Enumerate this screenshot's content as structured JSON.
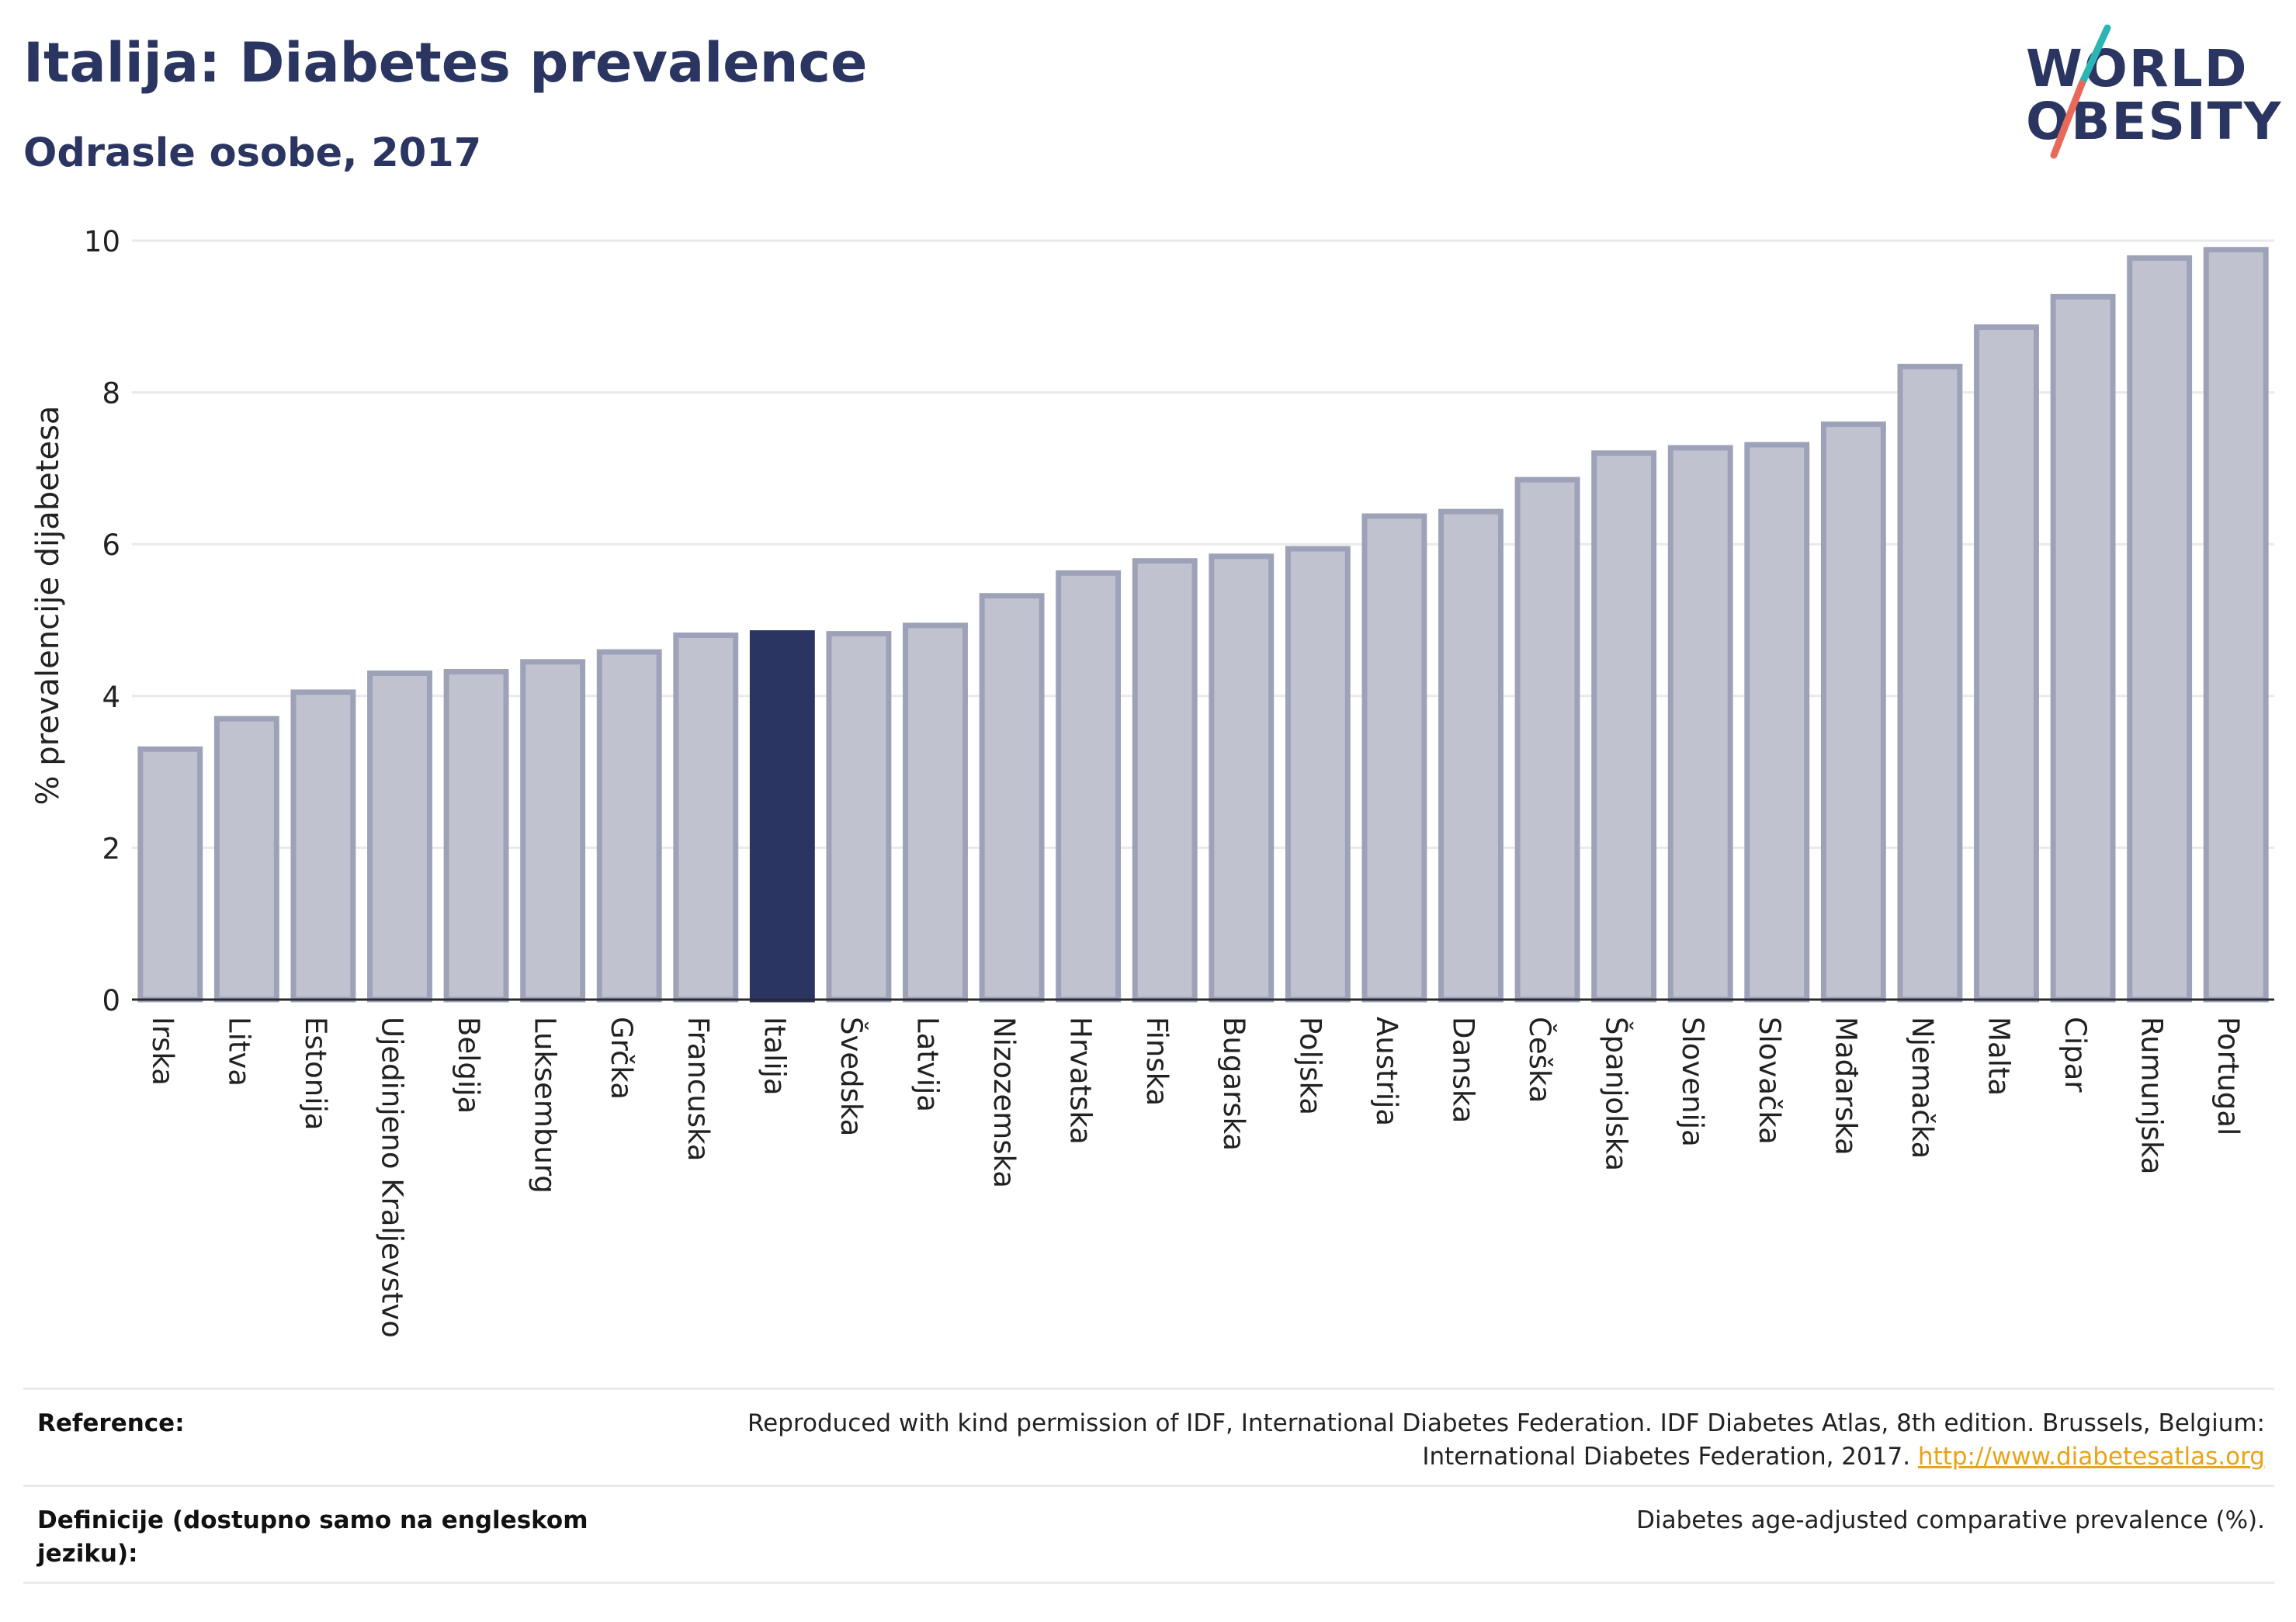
{
  "header": {
    "title": "Italija: Diabetes prevalence",
    "subtitle": "Odrasle osobe, 2017"
  },
  "logo": {
    "line1": "WORLD",
    "line2": "OBESITY",
    "slash_colors": [
      "#2cb5b5",
      "#e8695a"
    ]
  },
  "colors": {
    "bar": "#c0c3cf",
    "bar_stroke": "#9da2b8",
    "highlight": "#2b3561",
    "grid": "#e9e9e9",
    "axis": "#2b2b2b"
  },
  "chart_data": {
    "type": "bar",
    "title": "Italija: Diabetes prevalence",
    "subtitle": "Odrasle osobe, 2017",
    "xlabel": "",
    "ylabel": "% prevalencije dijabetesa",
    "ylim": [
      0,
      10
    ],
    "yticks": [
      0,
      2,
      4,
      6,
      8,
      10
    ],
    "grid": true,
    "highlight": "Italija",
    "categories": [
      "Irska",
      "Litva",
      "Estonija",
      "Ujedinjeno Kraljevstvo",
      "Belgija",
      "Luksemburg",
      "Grčka",
      "Francuska",
      "Italija",
      "Švedska",
      "Latvija",
      "Nizozemska",
      "Hrvatska",
      "Finska",
      "Bugarska",
      "Poljska",
      "Austrija",
      "Danska",
      "Češka",
      "Španjolska",
      "Slovenija",
      "Slovačka",
      "Mađarska",
      "Njemačka",
      "Malta",
      "Cipar",
      "Rumunjska",
      "Portugal"
    ],
    "values": [
      3.3,
      3.7,
      4.05,
      4.3,
      4.32,
      4.45,
      4.58,
      4.8,
      4.83,
      4.82,
      4.93,
      5.32,
      5.62,
      5.78,
      5.84,
      5.94,
      6.37,
      6.43,
      6.85,
      7.2,
      7.27,
      7.31,
      7.58,
      8.34,
      8.86,
      9.26,
      9.77,
      9.88
    ]
  },
  "footer": {
    "reference_label": "Reference:",
    "reference_text_line1": "Reproduced with kind permission of IDF, International Diabetes Federation. IDF Diabetes Atlas, 8th edition. Brussels, Belgium:",
    "reference_text_line2": "International Diabetes Federation, 2017.",
    "reference_link": "http://www.diabetesatlas.org",
    "definition_label": "Definicije (dostupno samo na engleskom jeziku):",
    "definition_text": "Diabetes age-adjusted comparative prevalence (%)."
  }
}
